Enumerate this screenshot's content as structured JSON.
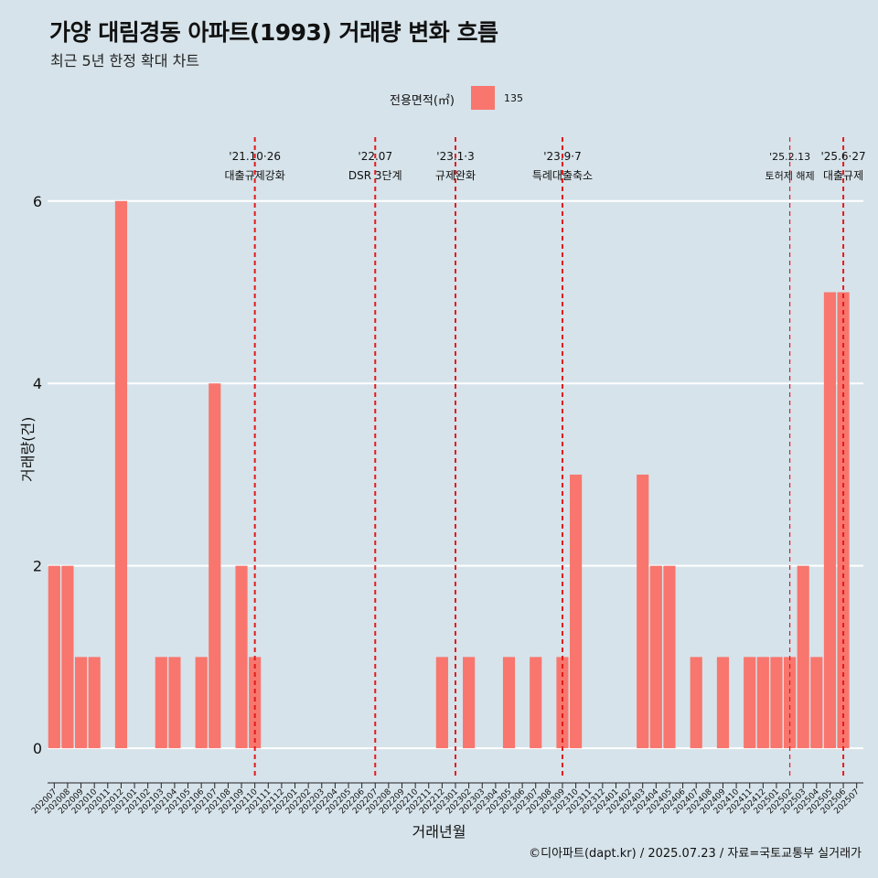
{
  "header": {
    "title": "가양 대림경동 아파트(1993) 거래량 변화 흐름",
    "subtitle": "최근 5년 한정 확대 차트"
  },
  "legend": {
    "title": "전용면적(㎡)",
    "label": "135",
    "color": "#f8766d"
  },
  "footer": {
    "caption": "©디아파트(dapt.kr) / 2025.07.23 / 자료=국토교통부 실거래가"
  },
  "chart_data": {
    "type": "bar",
    "xlabel": "거래년월",
    "ylabel": "거래량(건)",
    "ylim": [
      -0.3,
      6.7
    ],
    "yticks": [
      0,
      2,
      4,
      6
    ],
    "grid": true,
    "legend_position": "top",
    "bar_color": "#f8766d",
    "categories": [
      "202007",
      "202008",
      "202009",
      "202010",
      "202011",
      "202012",
      "202101",
      "202102",
      "202103",
      "202104",
      "202105",
      "202106",
      "202107",
      "202108",
      "202109",
      "202110",
      "202111",
      "202112",
      "202201",
      "202202",
      "202203",
      "202204",
      "202205",
      "202206",
      "202207",
      "202208",
      "202209",
      "202210",
      "202211",
      "202212",
      "202301",
      "202302",
      "202303",
      "202304",
      "202305",
      "202306",
      "202307",
      "202308",
      "202309",
      "202310",
      "202311",
      "202312",
      "202401",
      "202402",
      "202403",
      "202404",
      "202405",
      "202406",
      "202407",
      "202408",
      "202409",
      "202410",
      "202411",
      "202412",
      "202501",
      "202502",
      "202503",
      "202504",
      "202505",
      "202506",
      "202507"
    ],
    "series": [
      {
        "name": "135",
        "values": [
          2,
          2,
          1,
          1,
          0,
          6,
          0,
          0,
          1,
          1,
          0,
          1,
          4,
          0,
          2,
          1,
          0,
          0,
          0,
          0,
          0,
          0,
          0,
          0,
          0,
          0,
          0,
          0,
          0,
          1,
          0,
          1,
          0,
          0,
          1,
          0,
          1,
          0,
          1,
          3,
          0,
          0,
          0,
          0,
          3,
          2,
          2,
          0,
          1,
          0,
          1,
          0,
          1,
          1,
          1,
          1,
          2,
          1,
          5,
          5,
          0
        ]
      }
    ],
    "annotations": [
      {
        "at": "202110",
        "date": "'21.10·26",
        "text": "대출규제강화",
        "style": "bold"
      },
      {
        "at": "202207",
        "date": "'22.07",
        "text": "DSR 3단계",
        "style": "bold"
      },
      {
        "at": "202301",
        "date": "'23.1·3",
        "text": "규제완화",
        "style": "bold"
      },
      {
        "at": "202309",
        "date": "'23.9·7",
        "text": "특례대출축소",
        "style": "bold"
      },
      {
        "at": "202502",
        "date": "'25.2.13",
        "text": "토허제 해제",
        "style": "thin"
      },
      {
        "at": "202506",
        "date": "'25.6·27",
        "text": "대출규제",
        "style": "bold"
      }
    ]
  }
}
